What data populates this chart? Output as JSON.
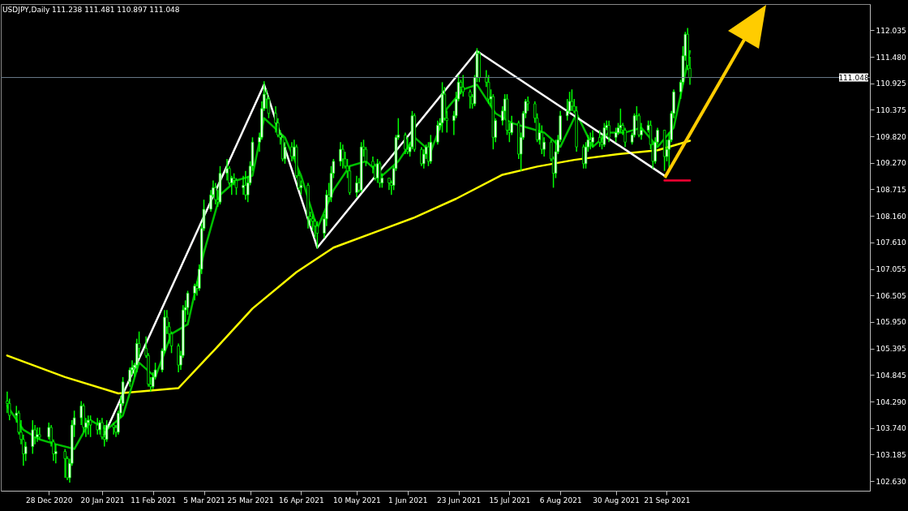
{
  "chart_data": {
    "type": "candlestick",
    "title": "USDJPY,Daily 111.238 111.481 110.897 111.048",
    "color": "#00ff00",
    "x": [
      "2020-12-10",
      "2020-12-11",
      "2020-12-14",
      "2020-12-15",
      "2020-12-16",
      "2020-12-17",
      "2020-12-18",
      "2020-12-21",
      "2020-12-22",
      "2020-12-23",
      "2020-12-24",
      "2020-12-28",
      "2020-12-29",
      "2020-12-30",
      "2020-12-31",
      "2021-01-04",
      "2021-01-05",
      "2021-01-06",
      "2021-01-07",
      "2021-01-08",
      "2021-01-11",
      "2021-01-12",
      "2021-01-13",
      "2021-01-14",
      "2021-01-15",
      "2021-01-18",
      "2021-01-19",
      "2021-01-20",
      "2021-01-21",
      "2021-01-22",
      "2021-01-25",
      "2021-01-26",
      "2021-01-27",
      "2021-01-28",
      "2021-01-29",
      "2021-02-01",
      "2021-02-02",
      "2021-02-03",
      "2021-02-04",
      "2021-02-05",
      "2021-02-08",
      "2021-02-09",
      "2021-02-10",
      "2021-02-11",
      "2021-02-12",
      "2021-02-15",
      "2021-02-16",
      "2021-02-17",
      "2021-02-18",
      "2021-02-19",
      "2021-02-22",
      "2021-02-23",
      "2021-02-24",
      "2021-02-25",
      "2021-02-26",
      "2021-03-01",
      "2021-03-02",
      "2021-03-03",
      "2021-03-04",
      "2021-03-05",
      "2021-03-08",
      "2021-03-09",
      "2021-03-10",
      "2021-03-11",
      "2021-03-12",
      "2021-03-15",
      "2021-03-16",
      "2021-03-17",
      "2021-03-18",
      "2021-03-19",
      "2021-03-22",
      "2021-03-23",
      "2021-03-24",
      "2021-03-25",
      "2021-03-26",
      "2021-03-29",
      "2021-03-30",
      "2021-03-31",
      "2021-04-01",
      "2021-04-02",
      "2021-04-05",
      "2021-04-06",
      "2021-04-07",
      "2021-04-08",
      "2021-04-09",
      "2021-04-12",
      "2021-04-13",
      "2021-04-14",
      "2021-04-15",
      "2021-04-16",
      "2021-04-19",
      "2021-04-20",
      "2021-04-21",
      "2021-04-22",
      "2021-04-23",
      "2021-04-26",
      "2021-04-27",
      "2021-04-28",
      "2021-04-29",
      "2021-04-30",
      "2021-05-03",
      "2021-05-04",
      "2021-05-05",
      "2021-05-06",
      "2021-05-07",
      "2021-05-10",
      "2021-05-11",
      "2021-05-12",
      "2021-05-13",
      "2021-05-14",
      "2021-05-17",
      "2021-05-18",
      "2021-05-19",
      "2021-05-20",
      "2021-05-21",
      "2021-05-24",
      "2021-05-25",
      "2021-05-26",
      "2021-05-27",
      "2021-05-28",
      "2021-05-31",
      "2021-06-01",
      "2021-06-02",
      "2021-06-03",
      "2021-06-04",
      "2021-06-07",
      "2021-06-08",
      "2021-06-09",
      "2021-06-10",
      "2021-06-11",
      "2021-06-14",
      "2021-06-15",
      "2021-06-16",
      "2021-06-17",
      "2021-06-18",
      "2021-06-21",
      "2021-06-22",
      "2021-06-23",
      "2021-06-24",
      "2021-06-25",
      "2021-06-28",
      "2021-06-29",
      "2021-06-30",
      "2021-07-01",
      "2021-07-02",
      "2021-07-05",
      "2021-07-06",
      "2021-07-07",
      "2021-07-08",
      "2021-07-09",
      "2021-07-12",
      "2021-07-13",
      "2021-07-14",
      "2021-07-15",
      "2021-07-16",
      "2021-07-19",
      "2021-07-20",
      "2021-07-21",
      "2021-07-22",
      "2021-07-23",
      "2021-07-26",
      "2021-07-27",
      "2021-07-28",
      "2021-07-29",
      "2021-07-30",
      "2021-08-02",
      "2021-08-03",
      "2021-08-04",
      "2021-08-05",
      "2021-08-06",
      "2021-08-09",
      "2021-08-10",
      "2021-08-11",
      "2021-08-12",
      "2021-08-13",
      "2021-08-16",
      "2021-08-17",
      "2021-08-18",
      "2021-08-19",
      "2021-08-20",
      "2021-08-23",
      "2021-08-24",
      "2021-08-25",
      "2021-08-26",
      "2021-08-27",
      "2021-08-30",
      "2021-08-31",
      "2021-09-01",
      "2021-09-02",
      "2021-09-03",
      "2021-09-06",
      "2021-09-07",
      "2021-09-08",
      "2021-09-09",
      "2021-09-10",
      "2021-09-13",
      "2021-09-14",
      "2021-09-15",
      "2021-09-16",
      "2021-09-17",
      "2021-09-20",
      "2021-09-21",
      "2021-09-22",
      "2021-09-23",
      "2021-09-24",
      "2021-09-27",
      "2021-09-28",
      "2021-09-29",
      "2021-09-30",
      "2021-10-01"
    ],
    "ohlc": [
      [
        104.3,
        104.5,
        104.05,
        104.25
      ],
      [
        104.25,
        104.35,
        103.9,
        104.0
      ],
      [
        104.0,
        104.2,
        103.85,
        104.05
      ],
      [
        104.05,
        104.1,
        103.6,
        103.65
      ],
      [
        103.65,
        103.9,
        103.4,
        103.5
      ],
      [
        103.5,
        103.6,
        102.95,
        103.2
      ],
      [
        103.2,
        103.45,
        103.05,
        103.35
      ],
      [
        103.35,
        103.9,
        103.2,
        103.7
      ],
      [
        103.7,
        103.8,
        103.4,
        103.55
      ],
      [
        103.55,
        103.75,
        103.45,
        103.6
      ],
      [
        103.6,
        103.75,
        103.5,
        103.55
      ],
      [
        103.55,
        103.85,
        103.5,
        103.75
      ],
      [
        103.75,
        103.8,
        103.35,
        103.45
      ],
      [
        103.45,
        103.5,
        103.05,
        103.2
      ],
      [
        103.2,
        103.4,
        103.0,
        103.25
      ],
      [
        103.25,
        103.3,
        102.7,
        103.1
      ],
      [
        103.1,
        103.15,
        102.65,
        102.7
      ],
      [
        102.7,
        103.1,
        102.6,
        103.0
      ],
      [
        103.0,
        103.9,
        102.95,
        103.8
      ],
      [
        103.8,
        104.1,
        103.55,
        103.95
      ],
      [
        103.95,
        104.3,
        103.8,
        104.2
      ],
      [
        104.2,
        104.25,
        103.65,
        103.75
      ],
      [
        103.75,
        103.95,
        103.55,
        103.85
      ],
      [
        103.85,
        104.0,
        103.6,
        103.9
      ],
      [
        103.9,
        104.0,
        103.55,
        103.8
      ],
      [
        103.8,
        103.95,
        103.6,
        103.7
      ],
      [
        103.7,
        103.9,
        103.6,
        103.85
      ],
      [
        103.85,
        103.95,
        103.5,
        103.55
      ],
      [
        103.55,
        103.8,
        103.35,
        103.5
      ],
      [
        103.5,
        103.9,
        103.45,
        103.8
      ],
      [
        103.8,
        103.85,
        103.6,
        103.75
      ],
      [
        103.75,
        103.8,
        103.55,
        103.65
      ],
      [
        103.65,
        104.1,
        103.6,
        104.05
      ],
      [
        104.05,
        104.4,
        103.95,
        104.25
      ],
      [
        104.25,
        104.8,
        104.2,
        104.7
      ],
      [
        104.7,
        105.0,
        104.6,
        104.95
      ],
      [
        104.95,
        105.15,
        104.85,
        105.0
      ],
      [
        105.0,
        105.1,
        104.8,
        105.05
      ],
      [
        105.05,
        105.6,
        104.9,
        105.5
      ],
      [
        105.5,
        105.75,
        105.2,
        105.4
      ],
      [
        105.4,
        105.65,
        105.2,
        105.25
      ],
      [
        105.25,
        105.3,
        104.6,
        104.65
      ],
      [
        104.65,
        104.8,
        104.5,
        104.6
      ],
      [
        104.6,
        104.9,
        104.55,
        104.8
      ],
      [
        104.8,
        105.1,
        104.75,
        104.95
      ],
      [
        104.95,
        105.4,
        104.9,
        105.35
      ],
      [
        105.35,
        106.2,
        105.3,
        106.05
      ],
      [
        106.05,
        106.2,
        105.7,
        105.85
      ],
      [
        105.85,
        105.95,
        105.5,
        105.7
      ],
      [
        105.7,
        105.75,
        105.3,
        105.45
      ],
      [
        105.45,
        105.5,
        104.9,
        105.05
      ],
      [
        105.05,
        105.35,
        104.95,
        105.25
      ],
      [
        105.25,
        106.3,
        105.2,
        106.2
      ],
      [
        106.2,
        106.4,
        105.95,
        106.25
      ],
      [
        106.25,
        106.6,
        106.1,
        106.55
      ],
      [
        106.55,
        106.75,
        106.4,
        106.7
      ],
      [
        106.7,
        106.8,
        106.5,
        106.65
      ],
      [
        106.65,
        107.15,
        106.6,
        107.05
      ],
      [
        107.05,
        108.0,
        106.95,
        107.9
      ],
      [
        107.9,
        108.5,
        107.85,
        108.3
      ],
      [
        108.3,
        108.7,
        108.25,
        108.6
      ],
      [
        108.6,
        108.9,
        108.55,
        108.75
      ],
      [
        108.75,
        108.85,
        108.4,
        108.5
      ],
      [
        108.5,
        108.7,
        108.35,
        108.45
      ],
      [
        108.45,
        109.2,
        108.4,
        109.05
      ],
      [
        109.05,
        109.35,
        108.9,
        109.15
      ],
      [
        109.15,
        109.2,
        108.8,
        108.85
      ],
      [
        108.85,
        109.0,
        108.6,
        108.95
      ],
      [
        108.95,
        109.05,
        108.8,
        108.9
      ],
      [
        108.9,
        108.95,
        108.6,
        108.75
      ],
      [
        108.75,
        109.0,
        108.6,
        108.8
      ],
      [
        108.8,
        109.1,
        108.5,
        108.6
      ],
      [
        108.6,
        109.0,
        108.45,
        108.85
      ],
      [
        108.85,
        109.3,
        108.8,
        109.2
      ],
      [
        109.2,
        109.8,
        109.1,
        109.7
      ],
      [
        109.7,
        109.9,
        109.5,
        109.8
      ],
      [
        109.8,
        110.55,
        109.75,
        110.4
      ],
      [
        110.4,
        110.97,
        110.35,
        110.7
      ],
      [
        110.7,
        110.8,
        110.4,
        110.6
      ],
      [
        110.6,
        110.65,
        110.2,
        110.3
      ],
      [
        110.3,
        110.45,
        109.9,
        110.1
      ],
      [
        110.1,
        110.2,
        109.8,
        109.85
      ],
      [
        109.85,
        109.95,
        109.65,
        109.8
      ],
      [
        109.8,
        109.85,
        109.3,
        109.35
      ],
      [
        109.35,
        109.7,
        109.25,
        109.6
      ],
      [
        109.6,
        109.7,
        109.3,
        109.4
      ],
      [
        109.4,
        109.75,
        109.35,
        109.6
      ],
      [
        109.6,
        109.65,
        108.95,
        109.0
      ],
      [
        109.0,
        109.1,
        108.7,
        108.75
      ],
      [
        108.75,
        108.9,
        108.6,
        108.8
      ],
      [
        108.8,
        108.85,
        107.9,
        108.15
      ],
      [
        108.15,
        108.25,
        107.95,
        108.1
      ],
      [
        108.1,
        108.2,
        107.85,
        108.05
      ],
      [
        108.05,
        108.1,
        107.7,
        107.95
      ],
      [
        107.95,
        108.05,
        107.48,
        107.8
      ],
      [
        107.8,
        108.2,
        107.7,
        108.1
      ],
      [
        108.1,
        108.7,
        107.95,
        108.6
      ],
      [
        108.6,
        108.85,
        108.45,
        108.55
      ],
      [
        108.55,
        109.2,
        108.45,
        109.05
      ],
      [
        109.05,
        109.35,
        108.95,
        109.3
      ],
      [
        109.3,
        109.7,
        109.2,
        109.55
      ],
      [
        109.55,
        109.65,
        109.15,
        109.35
      ],
      [
        109.35,
        109.5,
        109.15,
        109.2
      ],
      [
        109.2,
        109.35,
        108.95,
        109.1
      ],
      [
        109.1,
        109.2,
        108.6,
        108.65
      ],
      [
        108.65,
        109.0,
        108.55,
        108.85
      ],
      [
        108.85,
        108.95,
        108.65,
        108.7
      ],
      [
        108.7,
        109.7,
        108.65,
        109.6
      ],
      [
        109.6,
        109.75,
        109.4,
        109.55
      ],
      [
        109.55,
        109.6,
        109.2,
        109.3
      ],
      [
        109.3,
        109.4,
        109.05,
        109.2
      ],
      [
        109.2,
        109.25,
        108.9,
        108.95
      ],
      [
        108.95,
        109.35,
        108.85,
        109.25
      ],
      [
        109.25,
        109.3,
        108.75,
        108.85
      ],
      [
        108.85,
        109.05,
        108.75,
        108.95
      ],
      [
        108.95,
        108.95,
        108.7,
        108.85
      ],
      [
        108.85,
        108.9,
        108.6,
        108.8
      ],
      [
        108.8,
        109.2,
        108.7,
        109.15
      ],
      [
        109.15,
        109.85,
        109.1,
        109.8
      ],
      [
        109.8,
        110.2,
        109.75,
        109.85
      ],
      [
        109.85,
        109.9,
        109.45,
        109.55
      ],
      [
        109.55,
        109.8,
        109.45,
        109.5
      ],
      [
        109.5,
        109.7,
        109.4,
        109.6
      ],
      [
        109.6,
        110.35,
        109.55,
        110.25
      ],
      [
        110.25,
        110.3,
        109.5,
        109.55
      ],
      [
        109.55,
        109.6,
        109.2,
        109.25
      ],
      [
        109.25,
        109.55,
        109.15,
        109.45
      ],
      [
        109.45,
        109.65,
        109.35,
        109.6
      ],
      [
        109.6,
        109.7,
        109.2,
        109.3
      ],
      [
        109.3,
        109.85,
        109.25,
        109.7
      ],
      [
        109.7,
        110.15,
        109.65,
        110.05
      ],
      [
        110.05,
        110.2,
        109.95,
        110.1
      ],
      [
        110.1,
        110.95,
        109.9,
        110.7
      ],
      [
        110.7,
        110.85,
        110.15,
        110.2
      ],
      [
        110.2,
        110.35,
        109.9,
        110.15
      ],
      [
        110.15,
        110.35,
        109.85,
        110.25
      ],
      [
        110.25,
        110.75,
        110.2,
        110.6
      ],
      [
        110.6,
        111.1,
        110.55,
        110.95
      ],
      [
        110.95,
        111.0,
        110.7,
        110.85
      ],
      [
        110.85,
        111.1,
        110.65,
        110.75
      ],
      [
        110.75,
        110.8,
        110.4,
        110.65
      ],
      [
        110.65,
        110.7,
        110.4,
        110.5
      ],
      [
        110.5,
        111.1,
        110.45,
        111.05
      ],
      [
        111.05,
        111.66,
        110.95,
        111.55
      ],
      [
        111.55,
        111.6,
        110.95,
        111.05
      ],
      [
        111.05,
        111.2,
        110.85,
        110.95
      ],
      [
        110.95,
        111.1,
        110.5,
        110.6
      ],
      [
        110.6,
        110.8,
        110.45,
        110.65
      ],
      [
        110.65,
        110.7,
        109.55,
        109.8
      ],
      [
        109.8,
        110.2,
        109.7,
        110.15
      ],
      [
        110.15,
        110.45,
        110.05,
        110.35
      ],
      [
        110.35,
        110.7,
        110.2,
        110.6
      ],
      [
        110.6,
        110.7,
        109.85,
        109.95
      ],
      [
        109.95,
        110.1,
        109.7,
        109.9
      ],
      [
        109.9,
        110.25,
        109.85,
        110.1
      ],
      [
        110.1,
        110.15,
        109.35,
        109.45
      ],
      [
        109.45,
        109.9,
        109.1,
        109.8
      ],
      [
        109.8,
        110.35,
        109.75,
        110.3
      ],
      [
        110.3,
        110.6,
        110.2,
        110.55
      ],
      [
        110.55,
        110.65,
        110.35,
        110.5
      ],
      [
        110.5,
        110.55,
        110.1,
        110.2
      ],
      [
        110.2,
        110.3,
        109.7,
        109.75
      ],
      [
        109.75,
        110.1,
        109.65,
        109.9
      ],
      [
        109.9,
        110.05,
        109.45,
        109.55
      ],
      [
        109.55,
        109.8,
        109.4,
        109.7
      ],
      [
        109.7,
        109.75,
        109.3,
        109.35
      ],
      [
        109.35,
        109.4,
        108.75,
        109.05
      ],
      [
        109.05,
        109.75,
        108.95,
        109.5
      ],
      [
        109.5,
        109.85,
        109.45,
        109.75
      ],
      [
        109.75,
        110.35,
        109.7,
        110.25
      ],
      [
        110.25,
        110.6,
        110.15,
        110.35
      ],
      [
        110.35,
        110.75,
        110.3,
        110.55
      ],
      [
        110.55,
        110.8,
        110.35,
        110.45
      ],
      [
        110.45,
        110.6,
        110.3,
        110.35
      ],
      [
        110.35,
        110.45,
        109.5,
        109.6
      ],
      [
        109.6,
        109.65,
        109.15,
        109.25
      ],
      [
        109.25,
        109.7,
        109.15,
        109.6
      ],
      [
        109.6,
        109.85,
        109.5,
        109.75
      ],
      [
        109.75,
        109.9,
        109.55,
        109.7
      ],
      [
        109.7,
        109.95,
        109.6,
        109.8
      ],
      [
        109.8,
        109.95,
        109.6,
        109.7
      ],
      [
        109.7,
        109.85,
        109.55,
        109.65
      ],
      [
        109.65,
        110.1,
        109.6,
        110.0
      ],
      [
        110.0,
        110.15,
        109.95,
        110.05
      ],
      [
        110.05,
        110.15,
        109.7,
        109.8
      ],
      [
        109.8,
        110.0,
        109.7,
        109.9
      ],
      [
        109.9,
        110.1,
        109.85,
        110.0
      ],
      [
        110.0,
        110.4,
        109.9,
        110.05
      ],
      [
        110.05,
        110.1,
        109.85,
        109.95
      ],
      [
        109.95,
        110.0,
        109.6,
        109.7
      ],
      [
        109.7,
        109.9,
        109.65,
        109.85
      ],
      [
        109.85,
        110.3,
        109.8,
        110.25
      ],
      [
        110.25,
        110.45,
        110.15,
        110.25
      ],
      [
        110.25,
        110.3,
        109.8,
        109.85
      ],
      [
        109.85,
        110.1,
        109.75,
        109.95
      ],
      [
        109.95,
        110.15,
        109.9,
        110.05
      ],
      [
        110.05,
        110.15,
        109.55,
        109.65
      ],
      [
        109.65,
        109.7,
        109.15,
        109.3
      ],
      [
        109.3,
        109.8,
        109.25,
        109.7
      ],
      [
        109.7,
        110.0,
        109.65,
        109.95
      ],
      [
        109.95,
        109.95,
        109.1,
        109.4
      ],
      [
        109.4,
        109.75,
        109.3,
        109.55
      ],
      [
        109.55,
        109.9,
        109.15,
        109.75
      ],
      [
        109.75,
        110.35,
        109.7,
        110.3
      ],
      [
        110.3,
        110.8,
        110.2,
        110.75
      ],
      [
        110.75,
        111.0,
        110.6,
        110.95
      ],
      [
        110.95,
        111.7,
        110.9,
        111.5
      ],
      [
        111.5,
        112.0,
        111.4,
        111.95
      ],
      [
        111.95,
        112.08,
        111.2,
        111.3
      ],
      [
        111.238,
        111.481,
        110.897,
        111.048
      ]
    ],
    "series": [
      {
        "type": "line",
        "color": "#ffff00",
        "x": [
          "2020-12-10",
          "2021-01-04",
          "2021-01-27",
          "2021-02-22",
          "2021-03-10",
          "2021-03-26",
          "2021-04-14",
          "2021-04-30",
          "2021-05-19",
          "2021-06-04",
          "2021-06-22",
          "2021-07-12",
          "2021-07-27",
          "2021-08-12",
          "2021-08-31",
          "2021-09-17",
          "2021-10-01"
        ],
        "values": [
          105.25,
          104.8,
          104.46,
          104.57,
          105.39,
          106.23,
          106.99,
          107.5,
          107.84,
          108.13,
          108.52,
          109.02,
          109.19,
          109.33,
          109.45,
          109.53,
          109.73
        ]
      },
      {
        "type": "line",
        "color": "#00c000",
        "x": [
          "2020-12-10",
          "2020-12-17",
          "2020-12-24",
          "2020-12-31",
          "2021-01-08",
          "2021-01-15",
          "2021-01-22",
          "2021-01-29",
          "2021-02-05",
          "2021-02-12",
          "2021-02-19",
          "2021-02-26",
          "2021-03-05",
          "2021-03-12",
          "2021-03-19",
          "2021-03-26",
          "2021-03-31",
          "2021-04-09",
          "2021-04-16",
          "2021-04-23",
          "2021-04-30",
          "2021-05-07",
          "2021-05-14",
          "2021-05-21",
          "2021-05-28",
          "2021-06-04",
          "2021-06-11",
          "2021-06-18",
          "2021-06-25",
          "2021-07-01",
          "2021-07-09",
          "2021-07-16",
          "2021-07-23",
          "2021-07-30",
          "2021-08-06",
          "2021-08-13",
          "2021-08-20",
          "2021-08-27",
          "2021-09-03",
          "2021-09-10",
          "2021-09-17",
          "2021-09-24",
          "2021-10-01"
        ],
        "values": [
          104.2,
          103.7,
          103.5,
          103.4,
          103.3,
          103.9,
          103.7,
          104.0,
          105.1,
          104.8,
          105.7,
          105.9,
          107.4,
          108.6,
          108.9,
          109.0,
          110.2,
          109.8,
          109.0,
          107.9,
          108.7,
          109.2,
          109.3,
          109.0,
          109.3,
          109.8,
          109.5,
          110.4,
          110.8,
          110.9,
          110.3,
          110.1,
          110.0,
          109.9,
          109.6,
          110.3,
          109.6,
          109.9,
          109.9,
          110.0,
          109.6,
          110.0,
          111.6
        ]
      },
      {
        "type": "line",
        "color": "#ffffff",
        "x": [
          "2021-01-21",
          "2021-03-31",
          "2021-04-23",
          "2021-07-01",
          "2021-09-20"
        ],
        "values": [
          103.6,
          110.9,
          107.5,
          111.6,
          109.0
        ]
      },
      {
        "type": "line",
        "color": "#ff0033",
        "x": [
          "2021-09-20",
          "2021-10-01"
        ],
        "values": [
          108.9,
          108.9
        ]
      }
    ],
    "xlim": [
      "2020-12-09",
      "2021-12-16"
    ],
    "ylim": [
      102.43,
      112.58
    ],
    "yticks": [
      {
        "value": 102.63,
        "label": "102.630"
      },
      {
        "value": 103.185,
        "label": "103.185"
      },
      {
        "value": 103.74,
        "label": "103.740"
      },
      {
        "value": 104.29,
        "label": "104.290"
      },
      {
        "value": 104.845,
        "label": "104.845"
      },
      {
        "value": 105.395,
        "label": "105.395"
      },
      {
        "value": 105.95,
        "label": "105.950"
      },
      {
        "value": 106.505,
        "label": "106.505"
      },
      {
        "value": 107.055,
        "label": "107.055"
      },
      {
        "value": 107.61,
        "label": "107.610"
      },
      {
        "value": 108.16,
        "label": "108.160"
      },
      {
        "value": 108.715,
        "label": "108.715"
      },
      {
        "value": 109.27,
        "label": "109.270"
      },
      {
        "value": 109.82,
        "label": "109.820"
      },
      {
        "value": 110.375,
        "label": "110.375"
      },
      {
        "value": 110.925,
        "label": "110.925"
      },
      {
        "value": 111.48,
        "label": "111.480"
      },
      {
        "value": 112.035,
        "label": "112.035"
      }
    ],
    "xticks": [
      {
        "value": "2020-12-28",
        "label": "28 Dec 2020"
      },
      {
        "value": "2021-01-20",
        "label": "20 Jan 2021"
      },
      {
        "value": "2021-02-11",
        "label": "11 Feb 2021"
      },
      {
        "value": "2021-03-05",
        "label": "5 Mar 2021"
      },
      {
        "value": "2021-03-25",
        "label": "25 Mar 2021"
      },
      {
        "value": "2021-04-16",
        "label": "16 Apr 2021"
      },
      {
        "value": "2021-05-10",
        "label": "10 May 2021"
      },
      {
        "value": "2021-06-01",
        "label": "1 Jun 2021"
      },
      {
        "value": "2021-06-23",
        "label": "23 Jun 2021"
      },
      {
        "value": "2021-07-15",
        "label": "15 Jul 2021"
      },
      {
        "value": "2021-08-06",
        "label": "6 Aug 2021"
      },
      {
        "value": "2021-08-30",
        "label": "30 Aug 2021"
      },
      {
        "value": "2021-09-21",
        "label": "21 Sep 2021"
      }
    ],
    "ref_lines": [
      {
        "axis": "y",
        "value": 111.048,
        "label": "111.048",
        "color": "#6b7b8c"
      }
    ]
  }
}
